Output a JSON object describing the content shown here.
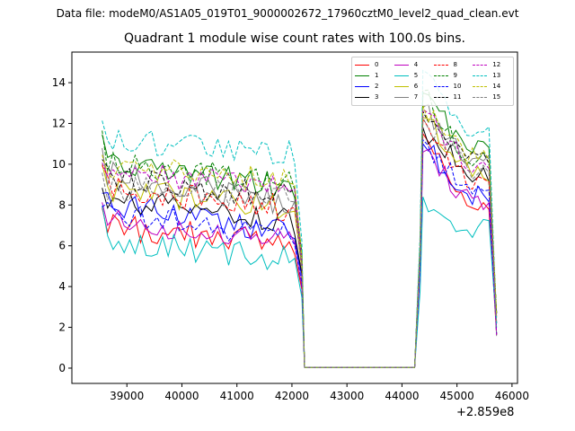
{
  "page": {
    "suptitle": "Data file: modeM0/AS1A05_019T01_9000002672_17960cztM0_level2_quad_clean.evt",
    "offset_text": "+2.859e8"
  },
  "chart_data": {
    "type": "line",
    "title": "Quadrant 1 module wise count rates with 100.0s bins.",
    "xlabel": "",
    "ylabel": "",
    "x_offset": 285900000,
    "xlim": [
      38000,
      46100
    ],
    "ylim": [
      -0.75,
      15.5
    ],
    "xticks": [
      39000,
      40000,
      41000,
      42000,
      43000,
      44000,
      45000,
      46000
    ],
    "yticks": [
      0,
      2,
      4,
      6,
      8,
      10,
      12,
      14
    ],
    "xtick_labels": [
      "39000",
      "40000",
      "41000",
      "42000",
      "43000",
      "44000",
      "45000",
      "46000"
    ],
    "ytick_labels": [
      "0",
      "2",
      "4",
      "6",
      "8",
      "10",
      "12",
      "14"
    ],
    "legend_position": "top-right",
    "segments": [
      {
        "start": 38550,
        "end": 42130,
        "drop_at": 42230,
        "gap_end": 44230
      },
      {
        "start": 44380,
        "end": 45650,
        "drop_at": 45720
      }
    ],
    "series": [
      {
        "name": "0",
        "color": "#ff0000",
        "dash": false,
        "pre_level": 7.0,
        "pre_trend": -1.0,
        "post_peak": 11.5,
        "post_level": 7.8
      },
      {
        "name": "1",
        "color": "#008000",
        "dash": false,
        "pre_level": 10.3,
        "pre_trend": -1.5,
        "post_peak": 13.5,
        "post_level": 10.8
      },
      {
        "name": "2",
        "color": "#0000ff",
        "dash": false,
        "pre_level": 8.1,
        "pre_trend": -1.5,
        "post_peak": 11.0,
        "post_level": 8.6
      },
      {
        "name": "3",
        "color": "#000000",
        "dash": false,
        "pre_level": 8.4,
        "pre_trend": -1.3,
        "post_peak": 11.8,
        "post_level": 9.5
      },
      {
        "name": "4",
        "color": "#bf00bf",
        "dash": false,
        "pre_level": 7.2,
        "pre_trend": -1.0,
        "post_peak": 10.6,
        "post_level": 8.2
      },
      {
        "name": "5",
        "color": "#00bfbf",
        "dash": false,
        "pre_level": 6.3,
        "pre_trend": -1.0,
        "post_peak": 8.4,
        "post_level": 6.7
      },
      {
        "name": "6",
        "color": "#bfbf00",
        "dash": false,
        "pre_level": 8.9,
        "pre_trend": -1.2,
        "post_peak": 12.3,
        "post_level": 9.6
      },
      {
        "name": "7",
        "color": "#808080",
        "dash": false,
        "pre_level": 9.6,
        "pre_trend": -1.6,
        "post_peak": 12.8,
        "post_level": 10.3
      },
      {
        "name": "8",
        "color": "#ff0000",
        "dash": true,
        "pre_level": 8.8,
        "pre_trend": -1.0,
        "post_peak": 12.2,
        "post_level": 9.3
      },
      {
        "name": "9",
        "color": "#008000",
        "dash": true,
        "pre_level": 10.2,
        "pre_trend": -1.2,
        "post_peak": 13.6,
        "post_level": 10.3
      },
      {
        "name": "10",
        "color": "#0000ff",
        "dash": true,
        "pre_level": 7.6,
        "pre_trend": -1.2,
        "post_peak": 11.2,
        "post_level": 8.7
      },
      {
        "name": "11",
        "color": "#000000",
        "dash": true,
        "pre_level": 9.4,
        "pre_trend": -1.0,
        "post_peak": 12.6,
        "post_level": 10.3
      },
      {
        "name": "12",
        "color": "#bf00bf",
        "dash": true,
        "pre_level": 9.6,
        "pre_trend": -0.6,
        "post_peak": 12.7,
        "post_level": 10.1
      },
      {
        "name": "13",
        "color": "#00bfbf",
        "dash": true,
        "pre_level": 11.3,
        "pre_trend": -0.8,
        "post_peak": 14.6,
        "post_level": 11.5
      },
      {
        "name": "14",
        "color": "#bfbf00",
        "dash": true,
        "pre_level": 9.9,
        "pre_trend": -0.8,
        "post_peak": 12.9,
        "post_level": 10.2
      },
      {
        "name": "15",
        "color": "#808080",
        "dash": true,
        "pre_level": 8.8,
        "pre_trend": -0.4,
        "post_peak": 12.3,
        "post_level": 9.8
      }
    ]
  }
}
